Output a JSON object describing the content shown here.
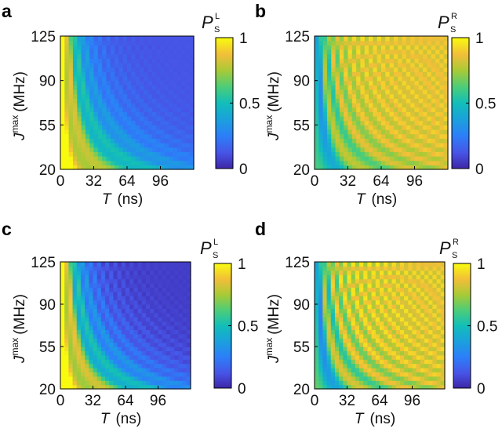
{
  "chart_data": [
    {
      "type": "heatmap",
      "panel": "a",
      "xlabel_var": "T",
      "xlabel_unit": "(ns)",
      "ylabel_var": "J",
      "ylabel_sup": "max",
      "ylabel_unit": "(MHz)",
      "xticks": [
        "0",
        "32",
        "64",
        "96"
      ],
      "xtick_values": [
        0,
        32,
        64,
        96
      ],
      "xlim": [
        0,
        128
      ],
      "yticks": [
        "20",
        "55",
        "90",
        "125"
      ],
      "ytick_values": [
        20,
        55,
        90,
        125
      ],
      "ylim": [
        20,
        125
      ],
      "colorbar": {
        "var": "P",
        "sub": "S",
        "sup": "L",
        "ticks": [
          "0",
          "0.5",
          "1"
        ],
        "tick_values": [
          0,
          0.5,
          1
        ],
        "range": [
          0,
          1
        ]
      },
      "description": "Left-dot singlet probability vs evolution time T and J max; high (yellow) only near short T / low J, mostly low (blue)",
      "model": {
        "kind": "L",
        "freq": 7.5e-05,
        "amp": 0.18,
        "base": 0.12,
        "peak": 0.8,
        "decay": 0.2
      }
    },
    {
      "type": "heatmap",
      "panel": "b",
      "xlabel_var": "T",
      "xlabel_unit": "(ns)",
      "ylabel_var": "J",
      "ylabel_sup": "max",
      "ylabel_unit": "(MHz)",
      "xticks": [
        "0",
        "32",
        "64",
        "96"
      ],
      "xtick_values": [
        0,
        32,
        64,
        96
      ],
      "xlim": [
        0,
        128
      ],
      "yticks": [
        "20",
        "55",
        "90",
        "125"
      ],
      "ytick_values": [
        20,
        55,
        90,
        125
      ],
      "ylim": [
        20,
        125
      ],
      "colorbar": {
        "var": "P",
        "sub": "S",
        "sup": "R",
        "ticks": [
          "0",
          "0.5",
          "1"
        ],
        "tick_values": [
          0,
          0.5,
          1
        ],
        "range": [
          0,
          1
        ]
      },
      "description": "Right-dot singlet probability; mostly high (yellow/orange) at long T and large J with oscillation fringes",
      "model": {
        "kind": "R",
        "freq": 7.5e-05,
        "amp": 0.22,
        "base": 0.86,
        "peak": 0.88,
        "decay": 0.2
      }
    },
    {
      "type": "heatmap",
      "panel": "c",
      "xlabel_var": "T",
      "xlabel_unit": "(ns)",
      "ylabel_var": "J",
      "ylabel_sup": "max",
      "ylabel_unit": "(MHz)",
      "xticks": [
        "0",
        "32",
        "64",
        "96"
      ],
      "xtick_values": [
        0,
        32,
        64,
        96
      ],
      "xlim": [
        0,
        128
      ],
      "yticks": [
        "20",
        "55",
        "90",
        "125"
      ],
      "ytick_values": [
        20,
        55,
        90,
        125
      ],
      "ylim": [
        20,
        125
      ],
      "colorbar": {
        "var": "P",
        "sub": "S",
        "sup": "L",
        "ticks": [
          "0",
          "0.5",
          "1"
        ],
        "tick_values": [
          0,
          0.5,
          1
        ],
        "range": [
          0,
          1
        ]
      },
      "description": "Simulated left-dot singlet probability",
      "model": {
        "kind": "L",
        "freq": 7.5e-05,
        "amp": 0.22,
        "base": 0.06,
        "peak": 0.9,
        "decay": 0.14
      }
    },
    {
      "type": "heatmap",
      "panel": "d",
      "xlabel_var": "T",
      "xlabel_unit": "(ns)",
      "ylabel_var": "J",
      "ylabel_sup": "max",
      "ylabel_unit": "(MHz)",
      "xticks": [
        "0",
        "32",
        "64",
        "96"
      ],
      "xtick_values": [
        0,
        32,
        64,
        96
      ],
      "xlim": [
        0,
        128
      ],
      "yticks": [
        "20",
        "55",
        "90",
        "125"
      ],
      "ytick_values": [
        20,
        55,
        90,
        125
      ],
      "ylim": [
        20,
        125
      ],
      "colorbar": {
        "var": "P",
        "sub": "S",
        "sup": "R",
        "ticks": [
          "0",
          "0.5",
          "1"
        ],
        "tick_values": [
          0,
          0.5,
          1
        ],
        "range": [
          0,
          1
        ]
      },
      "description": "Simulated right-dot singlet probability",
      "model": {
        "kind": "R",
        "freq": 7.5e-05,
        "amp": 0.26,
        "base": 0.86,
        "peak": 0.85,
        "decay": 0.14
      }
    }
  ]
}
